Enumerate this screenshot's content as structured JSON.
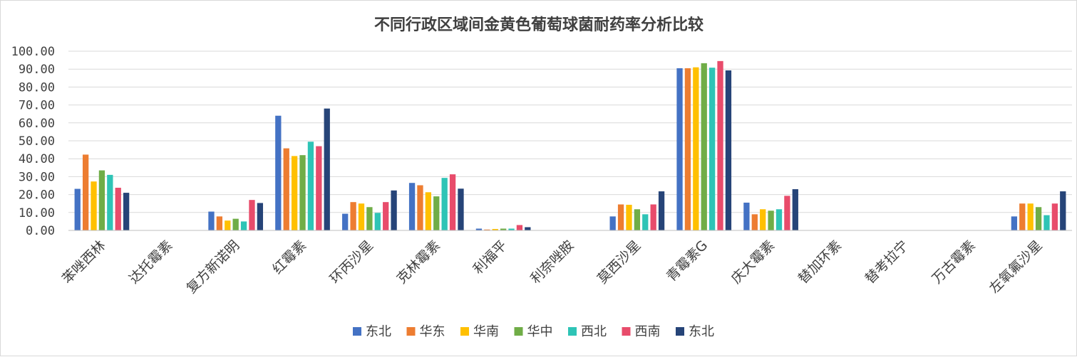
{
  "chart_data": {
    "type": "bar",
    "title": "不同行政区域间金黄色葡萄球菌耐药率分析比较",
    "xlabel": "",
    "ylabel": "",
    "ylim": [
      0,
      100
    ],
    "yticks": [
      "0.00",
      "10.00",
      "20.00",
      "30.00",
      "40.00",
      "50.00",
      "60.00",
      "70.00",
      "80.00",
      "90.00",
      "100.00"
    ],
    "grid": true,
    "legend_position": "bottom",
    "categories": [
      "苯唑西林",
      "达托霉素",
      "复方新诺明",
      "红霉素",
      "环丙沙星",
      "克林霉素",
      "利福平",
      "利奈唑胺",
      "莫西沙星",
      "青霉素G",
      "庆大霉素",
      "替加环素",
      "替考拉宁",
      "万古霉素",
      "左氧氟沙星"
    ],
    "series": [
      {
        "name": "东北",
        "color": "#4472C4",
        "values": [
          23.2,
          0,
          10.5,
          64.0,
          9.3,
          26.5,
          1.0,
          0,
          7.8,
          90.5,
          15.5,
          0,
          0,
          0,
          7.8
        ]
      },
      {
        "name": "华东",
        "color": "#ED7D31",
        "values": [
          42.3,
          0,
          7.8,
          45.8,
          15.8,
          25.2,
          0.5,
          0,
          14.5,
          90.5,
          9.0,
          0,
          0,
          0,
          15.0
        ]
      },
      {
        "name": "华南",
        "color": "#FFC000",
        "values": [
          27.3,
          0,
          5.5,
          41.5,
          15.0,
          21.3,
          0.8,
          0,
          14.3,
          91.0,
          11.8,
          0,
          0,
          0,
          15.0
        ]
      },
      {
        "name": "华中",
        "color": "#70AD47",
        "values": [
          33.5,
          0,
          6.5,
          42.0,
          13.0,
          19.0,
          1.0,
          0,
          11.8,
          93.3,
          11.0,
          0,
          0,
          0,
          13.0
        ]
      },
      {
        "name": "西北",
        "color": "#2EC4B6",
        "values": [
          31.0,
          0,
          5.0,
          49.5,
          9.8,
          29.3,
          1.0,
          0,
          9.0,
          90.8,
          11.8,
          0,
          0,
          0,
          8.5
        ]
      },
      {
        "name": "西南",
        "color": "#E84C6B",
        "values": [
          23.8,
          0,
          17.0,
          47.0,
          15.8,
          31.3,
          3.0,
          0,
          14.5,
          94.5,
          19.3,
          0,
          0,
          0,
          15.0
        ]
      },
      {
        "name": "东北",
        "color": "#264478",
        "values": [
          21.0,
          0,
          15.3,
          68.0,
          22.3,
          23.3,
          1.8,
          0,
          21.8,
          89.3,
          23.0,
          0,
          0,
          0,
          21.8
        ]
      }
    ]
  }
}
